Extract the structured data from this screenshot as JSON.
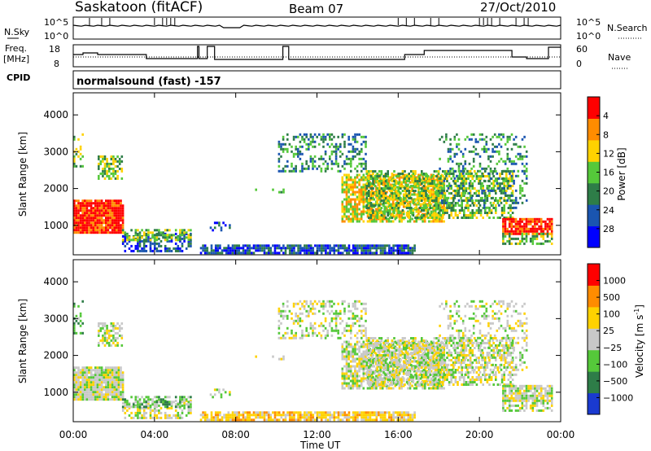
{
  "header": {
    "station": "Saskatoon (fitACF)",
    "beam": "Beam 07",
    "date": "27/Oct/2010"
  },
  "top_panels": {
    "nsky_label": "N.Sky",
    "nsearch_label": "N.Search",
    "nsky_ticks": [
      "10^5",
      "10^0"
    ],
    "nsearch_ticks": [
      "10^5",
      "10^0"
    ],
    "freq_label_1": "Freq.",
    "freq_label_2": "[MHz]",
    "freq_ticks": [
      "18",
      "8"
    ],
    "nave_label": "Nave",
    "nave_ticks": [
      "60",
      "0"
    ],
    "cpid_label": "CPID",
    "cpid_value": "normalsound (fast) -157"
  },
  "chart_data": [
    {
      "type": "heatmap",
      "name": "power",
      "ylabel": "Slant Range [km]",
      "yticks": [
        "1000",
        "2000",
        "3000",
        "4000"
      ],
      "ylim": [
        200,
        4600
      ],
      "colorbar_label": "Power [dB]",
      "colorbar_ticks": [
        "4",
        "8",
        "12",
        "16",
        "20",
        "24",
        "28"
      ],
      "colors": [
        "#0000ff",
        "#1a55b0",
        "#2e7d48",
        "#55c83a",
        "#ffd200",
        "#ff8c00",
        "#ff0000"
      ]
    },
    {
      "type": "heatmap",
      "name": "velocity",
      "ylabel": "Slant Range [km]",
      "yticks": [
        "1000",
        "2000",
        "3000",
        "4000"
      ],
      "ylim": [
        200,
        4600
      ],
      "colorbar_label": "Velocity [m s^-1]",
      "colorbar_ticks": [
        "1000",
        "500",
        "100",
        "25",
        "−25",
        "−100",
        "−500",
        "−1000"
      ],
      "colors": [
        "#1a3ad0",
        "#2e7d48",
        "#55c83a",
        "#c8c8c8",
        "#ffd200",
        "#ff8c00",
        "#ff0000"
      ]
    }
  ],
  "x_axis": {
    "label": "Time UT",
    "ticks": [
      "00:00",
      "04:00",
      "08:00",
      "12:00",
      "16:00",
      "20:00",
      "00:00"
    ]
  }
}
